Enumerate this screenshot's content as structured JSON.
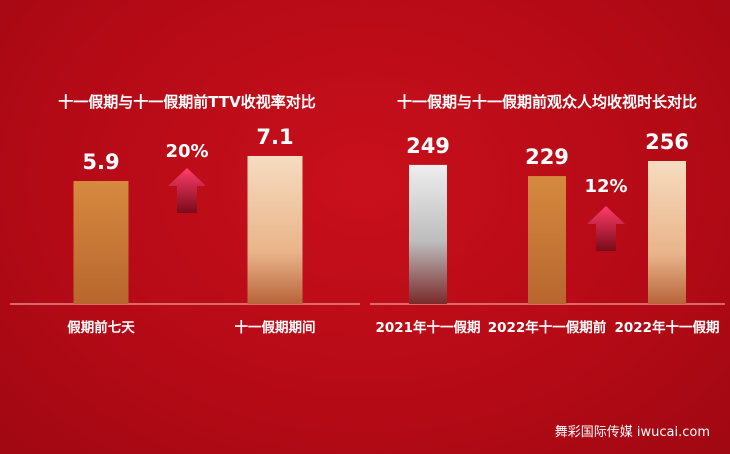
{
  "colors": {
    "background": "#b40a16",
    "bar_orange": "#c97a3a",
    "bar_light": "#f3d2b0",
    "bar_silver": "#e6e6e6",
    "arrow": "#e0204a"
  },
  "chart_data": [
    {
      "type": "bar",
      "title": "十一假期与十一假期前TTV收视率对比",
      "categories": [
        "假期前七天",
        "十一假期期间"
      ],
      "values": [
        5.9,
        7.1
      ],
      "value_labels": [
        "5.9",
        "7.1"
      ],
      "bar_styles": [
        "orange",
        "light"
      ],
      "change": {
        "label": "20%",
        "direction": "up",
        "icon": "up-arrow-icon"
      },
      "ylim": [
        0,
        7.1
      ],
      "grid": false,
      "legend": "none"
    },
    {
      "type": "bar",
      "title": "十一假期与十一假期前观众人均收视时长对比",
      "categories": [
        "2021年十一假期",
        "2022年十一假期前",
        "2022年十一假期"
      ],
      "values": [
        249,
        229,
        256
      ],
      "value_labels": [
        "249",
        "229",
        "256"
      ],
      "bar_styles": [
        "silver",
        "orange",
        "light"
      ],
      "change": {
        "label": "12%",
        "direction": "up",
        "icon": "up-arrow-icon"
      },
      "ylim": [
        0,
        256
      ],
      "grid": false,
      "legend": "none"
    }
  ],
  "watermark": "舞彩国际传媒 iwucai.com"
}
